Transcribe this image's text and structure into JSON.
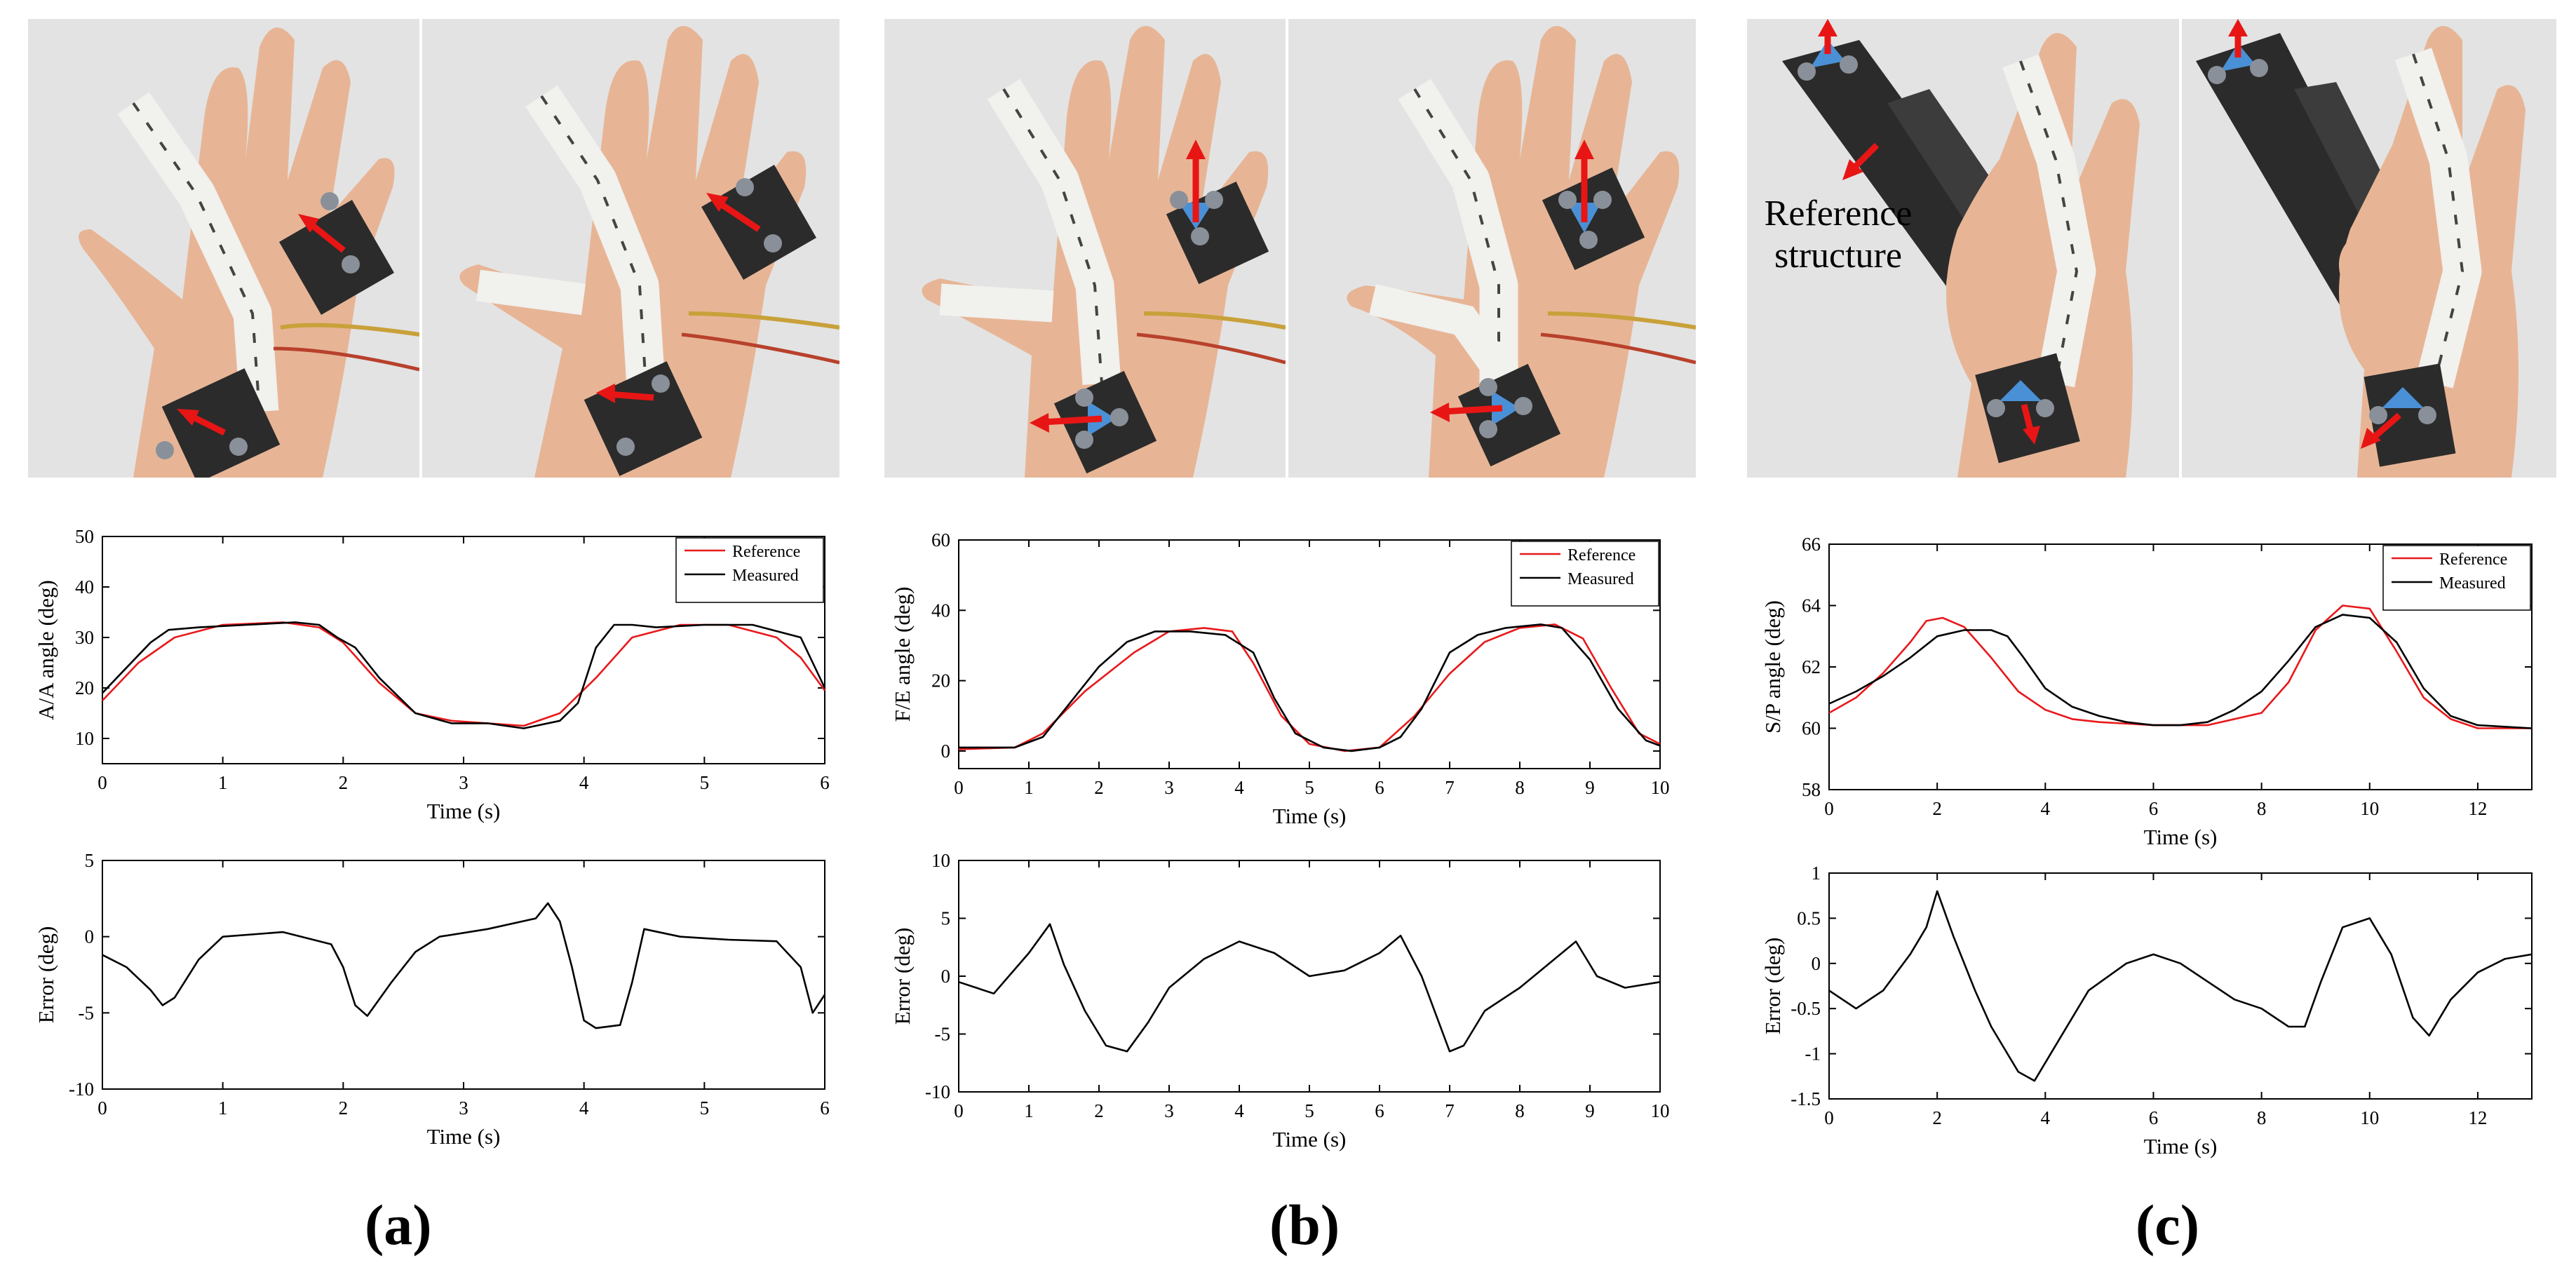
{
  "colors": {
    "reference": "#e8191b",
    "measured": "#000000",
    "marker_arrow_red": "#e81515",
    "marker_arrow_blue": "#4a90d6",
    "photo_background": "#e3e3e3",
    "skin": "#e7b596",
    "exoskeleton": "#f1f1ee",
    "mount": "#2b2b2b"
  },
  "icons": [
    "red-arrow-icon",
    "blue-arrow-icon",
    "marker-ball-icon"
  ],
  "panels": [
    {
      "id": "a",
      "label": "(a)",
      "photos": [
        "hand-exoskeleton-photo",
        "hand-exoskeleton-photo"
      ]
    },
    {
      "id": "b",
      "label": "(b)",
      "photos": [
        "hand-exoskeleton-photo",
        "hand-exoskeleton-photo"
      ]
    },
    {
      "id": "c",
      "label": "(c)",
      "photos": [
        "hand-grip-photo",
        "hand-grip-photo"
      ],
      "annotation": [
        "Reference",
        "structure"
      ]
    }
  ],
  "chart_data": [
    {
      "id": "a-angle",
      "type": "line",
      "xlabel": "Time (s)",
      "ylabel": "A/A angle (deg)",
      "xlim": [
        0,
        6
      ],
      "ylim": [
        5,
        50
      ],
      "xticks": [
        0,
        1,
        2,
        3,
        4,
        5,
        6
      ],
      "yticks": [
        10,
        20,
        30,
        40,
        50
      ],
      "grid": false,
      "legend": "top-right",
      "series": [
        {
          "name": "Reference",
          "color": "#e8191b",
          "x": [
            0,
            0.3,
            0.6,
            1.0,
            1.5,
            1.8,
            2.0,
            2.3,
            2.6,
            2.9,
            3.2,
            3.5,
            3.8,
            4.1,
            4.4,
            4.8,
            5.2,
            5.6,
            5.8,
            6.0
          ],
          "y": [
            17.5,
            25,
            30,
            32.5,
            33,
            32,
            29,
            21,
            15,
            13.5,
            13,
            12.5,
            15,
            22,
            30,
            32.5,
            32.5,
            30,
            26,
            19.5
          ]
        },
        {
          "name": "Measured",
          "color": "#000000",
          "x": [
            0,
            0.2,
            0.4,
            0.55,
            0.8,
            1.2,
            1.6,
            1.8,
            1.95,
            2.1,
            2.3,
            2.6,
            2.9,
            3.2,
            3.5,
            3.8,
            3.95,
            4.1,
            4.25,
            4.4,
            4.6,
            5.0,
            5.4,
            5.8,
            6.0
          ],
          "y": [
            19,
            24,
            29,
            31.5,
            32,
            32.5,
            33,
            32.5,
            30,
            28,
            22,
            15,
            13,
            13,
            12,
            13.5,
            17,
            28,
            32.5,
            32.5,
            32,
            32.5,
            32.5,
            30,
            20
          ]
        }
      ]
    },
    {
      "id": "a-error",
      "type": "line",
      "xlabel": "Time (s)",
      "ylabel": "Error (deg)",
      "xlim": [
        0,
        6
      ],
      "ylim": [
        -10,
        5
      ],
      "xticks": [
        0,
        1,
        2,
        3,
        4,
        5,
        6
      ],
      "yticks": [
        -10,
        -5,
        0,
        5
      ],
      "grid": false,
      "series": [
        {
          "name": "",
          "color": "#000000",
          "x": [
            0,
            0.2,
            0.4,
            0.5,
            0.6,
            0.8,
            1.0,
            1.5,
            1.9,
            2.0,
            2.1,
            2.2,
            2.4,
            2.6,
            2.8,
            3.2,
            3.6,
            3.7,
            3.8,
            3.9,
            4.0,
            4.1,
            4.3,
            4.4,
            4.5,
            4.8,
            5.2,
            5.6,
            5.8,
            5.9,
            6.0
          ],
          "y": [
            -1.2,
            -2,
            -3.5,
            -4.5,
            -4,
            -1.5,
            0,
            0.3,
            -0.5,
            -2,
            -4.5,
            -5.2,
            -3,
            -1,
            0,
            0.5,
            1.2,
            2.2,
            1,
            -2,
            -5.5,
            -6,
            -5.8,
            -3,
            0.5,
            0,
            -0.2,
            -0.3,
            -2,
            -5,
            -3.8
          ]
        }
      ]
    },
    {
      "id": "b-angle",
      "type": "line",
      "xlabel": "Time (s)",
      "ylabel": "F/E angle (deg)",
      "xlim": [
        0,
        10
      ],
      "ylim": [
        -5,
        60
      ],
      "xticks": [
        0,
        1,
        2,
        3,
        4,
        5,
        6,
        7,
        8,
        9,
        10
      ],
      "yticks": [
        0,
        20,
        40,
        60
      ],
      "grid": false,
      "legend": "top-right",
      "series": [
        {
          "name": "Reference",
          "color": "#e8191b",
          "x": [
            0,
            0.8,
            1.2,
            1.8,
            2.5,
            3.0,
            3.5,
            3.9,
            4.2,
            4.6,
            5.0,
            5.5,
            6.0,
            6.5,
            7.0,
            7.5,
            8.0,
            8.5,
            8.9,
            9.3,
            9.7,
            10.0
          ],
          "y": [
            0.5,
            1,
            5,
            17,
            28,
            34,
            35,
            34,
            25,
            10,
            2,
            0,
            1,
            10,
            22,
            31,
            35,
            36,
            32,
            18,
            5,
            2
          ]
        },
        {
          "name": "Measured",
          "color": "#000000",
          "x": [
            0,
            0.8,
            1.2,
            1.6,
            2.0,
            2.4,
            2.8,
            3.3,
            3.8,
            4.2,
            4.5,
            4.8,
            5.2,
            5.6,
            6.0,
            6.3,
            6.6,
            7.0,
            7.4,
            7.8,
            8.3,
            8.6,
            9.0,
            9.4,
            9.8,
            10.0
          ],
          "y": [
            1,
            1,
            4,
            14,
            24,
            31,
            34,
            34,
            33,
            28,
            15,
            5,
            1,
            0,
            1,
            4,
            12,
            28,
            33,
            35,
            36,
            35,
            26,
            12,
            3,
            1.5
          ]
        }
      ]
    },
    {
      "id": "b-error",
      "type": "line",
      "xlabel": "Time (s)",
      "ylabel": "Error (deg)",
      "xlim": [
        0,
        10
      ],
      "ylim": [
        -10,
        10
      ],
      "xticks": [
        0,
        1,
        2,
        3,
        4,
        5,
        6,
        7,
        8,
        9,
        10
      ],
      "yticks": [
        -10,
        -5,
        0,
        5,
        10
      ],
      "grid": false,
      "series": [
        {
          "name": "",
          "color": "#000000",
          "x": [
            0,
            0.5,
            1.0,
            1.3,
            1.5,
            1.8,
            2.1,
            2.4,
            2.7,
            3.0,
            3.5,
            4.0,
            4.5,
            5.0,
            5.5,
            6.0,
            6.3,
            6.6,
            7.0,
            7.2,
            7.5,
            8.0,
            8.5,
            8.8,
            9.1,
            9.5,
            10.0
          ],
          "y": [
            -0.5,
            -1.5,
            2,
            4.5,
            1,
            -3,
            -6,
            -6.5,
            -4,
            -1,
            1.5,
            3,
            2,
            0,
            0.5,
            2,
            3.5,
            0,
            -6.5,
            -6,
            -3,
            -1,
            1.5,
            3,
            0,
            -1,
            -0.5
          ]
        }
      ]
    },
    {
      "id": "c-angle",
      "type": "line",
      "xlabel": "Time (s)",
      "ylabel": "S/P angle (deg)",
      "xlim": [
        0,
        13
      ],
      "ylim": [
        58,
        66
      ],
      "xticks": [
        0,
        2,
        4,
        6,
        8,
        10,
        12
      ],
      "yticks": [
        58,
        60,
        62,
        64,
        66
      ],
      "grid": false,
      "legend": "top-right",
      "series": [
        {
          "name": "Reference",
          "color": "#e8191b",
          "x": [
            0,
            0.5,
            1.0,
            1.5,
            1.8,
            2.1,
            2.5,
            3.0,
            3.5,
            4.0,
            4.5,
            5.0,
            6.0,
            7.0,
            8.0,
            8.5,
            9.0,
            9.5,
            10.0,
            10.5,
            11.0,
            11.5,
            12.0,
            13.0
          ],
          "y": [
            60.5,
            61,
            61.8,
            62.8,
            63.5,
            63.6,
            63.3,
            62.3,
            61.2,
            60.6,
            60.3,
            60.2,
            60.1,
            60.1,
            60.5,
            61.5,
            63.2,
            64.0,
            63.9,
            62.5,
            61.0,
            60.3,
            60.0,
            60.0
          ]
        },
        {
          "name": "Measured",
          "color": "#000000",
          "x": [
            0,
            0.5,
            1.0,
            1.5,
            2.0,
            2.5,
            3.0,
            3.3,
            3.6,
            4.0,
            4.5,
            5.0,
            5.5,
            6.0,
            6.5,
            7.0,
            7.5,
            8.0,
            8.5,
            9.0,
            9.5,
            10.0,
            10.5,
            11.0,
            11.5,
            12.0,
            13.0
          ],
          "y": [
            60.8,
            61.2,
            61.7,
            62.3,
            63.0,
            63.2,
            63.2,
            63.0,
            62.3,
            61.3,
            60.7,
            60.4,
            60.2,
            60.1,
            60.1,
            60.2,
            60.6,
            61.2,
            62.2,
            63.3,
            63.7,
            63.6,
            62.8,
            61.3,
            60.4,
            60.1,
            60.0
          ]
        }
      ]
    },
    {
      "id": "c-error",
      "type": "line",
      "xlabel": "Time (s)",
      "ylabel": "Error (deg)",
      "xlim": [
        0,
        13
      ],
      "ylim": [
        -1.5,
        1
      ],
      "xticks": [
        0,
        2,
        4,
        6,
        8,
        10,
        12
      ],
      "yticks": [
        -1.5,
        -1,
        -0.5,
        0,
        0.5,
        1
      ],
      "grid": false,
      "series": [
        {
          "name": "",
          "color": "#000000",
          "x": [
            0,
            0.5,
            1.0,
            1.5,
            1.8,
            2.0,
            2.3,
            2.7,
            3.0,
            3.5,
            3.8,
            4.2,
            4.8,
            5.5,
            6.0,
            6.5,
            7.0,
            7.5,
            8.0,
            8.5,
            8.8,
            9.1,
            9.5,
            10.0,
            10.4,
            10.8,
            11.1,
            11.5,
            12.0,
            12.5,
            13.0
          ],
          "y": [
            -0.3,
            -0.5,
            -0.3,
            0.1,
            0.4,
            0.8,
            0.3,
            -0.3,
            -0.7,
            -1.2,
            -1.3,
            -0.9,
            -0.3,
            0.0,
            0.1,
            0.0,
            -0.2,
            -0.4,
            -0.5,
            -0.7,
            -0.7,
            -0.2,
            0.4,
            0.5,
            0.1,
            -0.6,
            -0.8,
            -0.4,
            -0.1,
            0.05,
            0.1
          ]
        }
      ]
    }
  ]
}
